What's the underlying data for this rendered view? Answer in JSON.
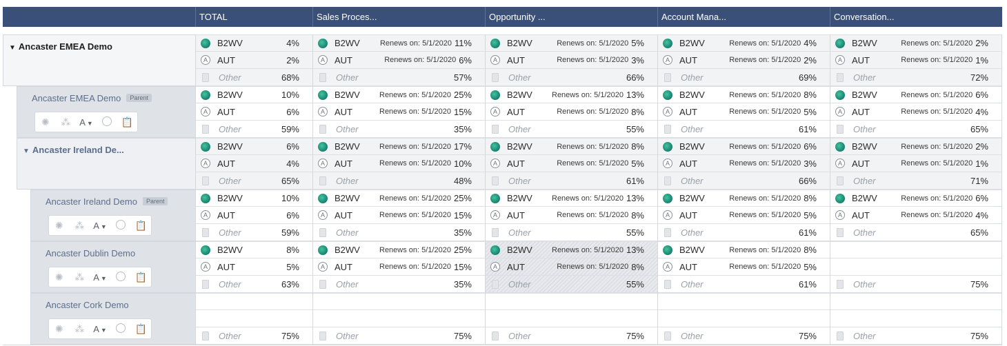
{
  "header": {
    "columns": [
      "TOTAL",
      "Sales Proces...",
      "Opportunity ...",
      "Account Mana...",
      "Conversation..."
    ]
  },
  "labels": {
    "renews": "Renews on: 5/1/2020",
    "b2wv": "B2WV",
    "aut": "AUT",
    "other": "Other",
    "parent_badge": "Parent",
    "toolbar_a": "A"
  },
  "rows": [
    {
      "name": "Ancaster EMEA Demo",
      "cells": [
        {
          "b2wv": "4%",
          "aut": "2%",
          "other": "68%"
        },
        {
          "b2wv": "11%",
          "aut": "6%",
          "other": "57%"
        },
        {
          "b2wv": "5%",
          "aut": "3%",
          "other": "66%"
        },
        {
          "b2wv": "4%",
          "aut": "2%",
          "other": "69%"
        },
        {
          "b2wv": "2%",
          "aut": "1%",
          "other": "72%"
        }
      ]
    },
    {
      "name": "Ancaster EMEA Demo",
      "cells": [
        {
          "b2wv": "10%",
          "aut": "6%",
          "other": "59%"
        },
        {
          "b2wv": "25%",
          "aut": "15%",
          "other": "35%"
        },
        {
          "b2wv": "13%",
          "aut": "8%",
          "other": "55%"
        },
        {
          "b2wv": "8%",
          "aut": "5%",
          "other": "61%"
        },
        {
          "b2wv": "6%",
          "aut": "4%",
          "other": "65%"
        }
      ]
    },
    {
      "name": "Ancaster Ireland De...",
      "cells": [
        {
          "b2wv": "6%",
          "aut": "4%",
          "other": "65%"
        },
        {
          "b2wv": "17%",
          "aut": "10%",
          "other": "48%"
        },
        {
          "b2wv": "8%",
          "aut": "5%",
          "other": "61%"
        },
        {
          "b2wv": "6%",
          "aut": "3%",
          "other": "66%"
        },
        {
          "b2wv": "2%",
          "aut": "1%",
          "other": "71%"
        }
      ]
    },
    {
      "name": "Ancaster Ireland Demo",
      "cells": [
        {
          "b2wv": "10%",
          "aut": "6%",
          "other": "59%"
        },
        {
          "b2wv": "25%",
          "aut": "15%",
          "other": "35%"
        },
        {
          "b2wv": "13%",
          "aut": "8%",
          "other": "55%"
        },
        {
          "b2wv": "8%",
          "aut": "5%",
          "other": "61%"
        },
        {
          "b2wv": "6%",
          "aut": "4%",
          "other": "65%"
        }
      ]
    },
    {
      "name": "Ancaster Dublin Demo",
      "cells": [
        {
          "b2wv": "8%",
          "aut": "5%",
          "other": "63%"
        },
        {
          "b2wv": "25%",
          "aut": "15%",
          "other": "35%"
        },
        {
          "b2wv": "13%",
          "aut": "8%",
          "other": "55%"
        },
        {
          "b2wv": "8%",
          "aut": "5%",
          "other": "61%"
        },
        {
          "other": "75%"
        }
      ]
    },
    {
      "name": "Ancaster Cork Demo",
      "cells": [
        {
          "other": "75%"
        },
        {
          "other": "75%"
        },
        {
          "other": "75%"
        },
        {
          "other": "75%"
        },
        {
          "other": "75%"
        }
      ]
    }
  ]
}
